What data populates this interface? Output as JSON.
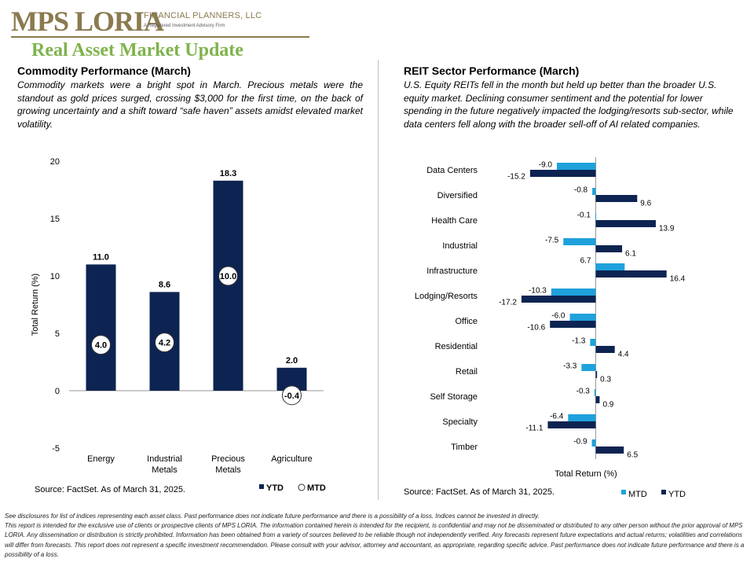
{
  "brand": {
    "logo_main": "MPS LORIA",
    "logo_sub": "FINANCIAL PLANNERS, LLC",
    "logo_tagline": "A Registered Investment Advisory Firm",
    "title": "Real Asset Market Update",
    "colors": {
      "gold": "#8a7a4e",
      "title_green": "#7fb34c",
      "navy": "#0d2452",
      "cyan": "#1fa1dc"
    }
  },
  "commodity": {
    "title": "Commodity  Performance (March)",
    "body": "Commodity markets were a bright spot in March. Precious metals were the standout as gold prices surged, crossing $3,000 for the first time, on the back of growing uncertainty and a shift toward “safe haven” assets amidst elevated market volatility.",
    "source": "Source: FactSet. As of March 31, 2025."
  },
  "reit": {
    "title": "REIT Sector Performance (March)",
    "body": "U.S. Equity REITs fell in the month but held up better than the broader U.S. equity market. Declining consumer sentiment and the potential for lower spending in the future negatively  impacted the lodging/resorts sub-sector, while data centers fell along with the broader sell-off of AI related companies.",
    "source": "Source: FactSet. As of March 31, 2025."
  },
  "footer": {
    "line1": " See disclosures for list of indices representing each asset class. Past performance does not indicate future performance and there is a possibility of a loss. Indices cannot be invested in directly.",
    "line2": "This report is intended for the exclusive use of clients or prospective clients of MPS LORIA. The information contained herein is intended for the recipient, is confidential and may not be disseminated or distributed to any other person without the prior approval of MPS LORIA. Any dissemination or distribution is strictly prohibited. Information has been obtained from a variety of sources believed to be reliable though not independently verified. Any forecasts represent future expectations and actual returns; volatilities and correlations will differ from forecasts. This report does not represent a specific investment recommendation. Please consult with your advisor, attorney and accountant, as appropriate, regarding specific advice. Past performance does not indicate future performance and there is a possibility of a loss."
  },
  "chart_data": [
    {
      "type": "bar",
      "categories": [
        "Energy",
        "Industrial Metals",
        "Precious Metals",
        "Agriculture"
      ],
      "series": [
        {
          "name": "YTD",
          "values": [
            11.0,
            8.6,
            18.3,
            2.0
          ],
          "color": "#0d2452"
        },
        {
          "name": "MTD",
          "values": [
            4.0,
            4.2,
            10.0,
            -0.4
          ],
          "color": "#ffffff"
        }
      ],
      "ylabel": "Total Return (%)",
      "ylim": [
        -5,
        20
      ],
      "yticks": [
        -5,
        0,
        5,
        10,
        15,
        20
      ],
      "legend": "bottom-right",
      "grid": false
    },
    {
      "type": "bar",
      "orientation": "horizontal",
      "categories": [
        "Data Centers",
        "Diversified",
        "Health Care",
        "Industrial",
        "Infrastructure",
        "Lodging/Resorts",
        "Office",
        "Residential",
        "Retail",
        "Self Storage",
        "Specialty",
        "Timber"
      ],
      "series": [
        {
          "name": "MTD",
          "values": [
            -9.0,
            -0.8,
            -0.1,
            -7.5,
            6.7,
            -10.3,
            -6.0,
            -1.3,
            -3.3,
            -0.3,
            -6.4,
            -0.9
          ],
          "color": "#1fa1dc"
        },
        {
          "name": "YTD",
          "values": [
            -15.2,
            9.6,
            13.9,
            6.1,
            16.4,
            -17.2,
            -10.6,
            4.4,
            0.3,
            0.9,
            -11.1,
            6.5
          ],
          "color": "#0d2452"
        }
      ],
      "xlabel": "Total Return (%)",
      "xlim": [
        -19,
        17
      ],
      "legend": "bottom",
      "grid": false
    }
  ]
}
